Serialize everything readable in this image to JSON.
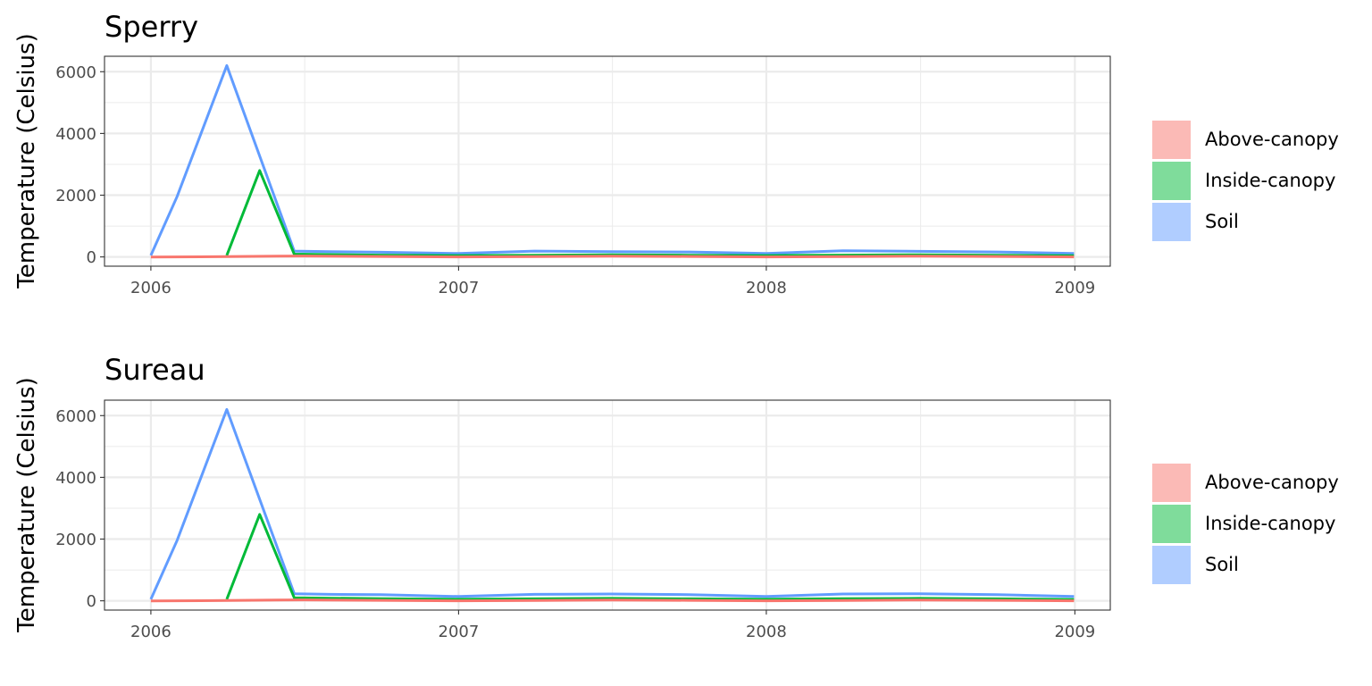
{
  "chart_data": [
    {
      "type": "line",
      "title": "Sperry",
      "xlabel": "",
      "ylabel": "Temperature (Celsius)",
      "xlim": [
        "2005-11-07",
        "2009-02-12"
      ],
      "ylim": [
        -300,
        6500
      ],
      "x_ticks": [
        "2006",
        "2007",
        "2008",
        "2009"
      ],
      "y_ticks": [
        "0",
        "2000",
        "4000",
        "6000"
      ],
      "grid": true,
      "legend": "right",
      "legend_entries": [
        "Above-canopy",
        "Inside-canopy",
        "Soil"
      ],
      "series": [
        {
          "name": "Above-canopy",
          "color": "#F8766D",
          "x": [
            "2006-01-01",
            "2006-03-01",
            "2006-06-01",
            "2006-07-01",
            "2006-10-01",
            "2007-01-01",
            "2007-04-01",
            "2007-07-01",
            "2007-10-01",
            "2008-01-01",
            "2008-04-01",
            "2008-07-01",
            "2008-10-01",
            "2008-12-31"
          ],
          "y": [
            -5,
            5,
            25,
            30,
            15,
            0,
            12,
            28,
            14,
            0,
            12,
            26,
            14,
            0
          ]
        },
        {
          "name": "Inside-canopy",
          "color": "#00BA38",
          "x": [
            "2006-04-01",
            "2006-05-10",
            "2006-06-20",
            "2006-08-01",
            "2006-10-01",
            "2007-01-01",
            "2007-04-01",
            "2007-07-01",
            "2007-10-01",
            "2008-01-01",
            "2008-04-01",
            "2008-07-01",
            "2008-10-01",
            "2008-12-31"
          ],
          "y": [
            50,
            2800,
            90,
            75,
            60,
            45,
            55,
            70,
            55,
            45,
            60,
            70,
            55,
            40
          ]
        },
        {
          "name": "Soil",
          "color": "#619CFF",
          "x": [
            "2006-01-01",
            "2006-02-01",
            "2006-04-01",
            "2006-06-20",
            "2006-08-01",
            "2006-10-01",
            "2007-01-01",
            "2007-04-01",
            "2007-07-01",
            "2007-10-01",
            "2008-01-01",
            "2008-04-01",
            "2008-07-01",
            "2008-10-01",
            "2008-12-31"
          ],
          "y": [
            50,
            1950,
            6200,
            190,
            170,
            150,
            110,
            190,
            170,
            160,
            110,
            200,
            180,
            160,
            110
          ]
        }
      ]
    },
    {
      "type": "line",
      "title": "Sureau",
      "xlabel": "",
      "ylabel": "Temperature (Celsius)",
      "xlim": [
        "2005-11-07",
        "2009-02-12"
      ],
      "ylim": [
        -300,
        6500
      ],
      "x_ticks": [
        "2006",
        "2007",
        "2008",
        "2009"
      ],
      "y_ticks": [
        "0",
        "2000",
        "4000",
        "6000"
      ],
      "grid": true,
      "legend": "right",
      "legend_entries": [
        "Above-canopy",
        "Inside-canopy",
        "Soil"
      ],
      "series": [
        {
          "name": "Above-canopy",
          "color": "#F8766D",
          "x": [
            "2006-01-01",
            "2006-03-01",
            "2006-06-01",
            "2006-07-01",
            "2006-10-01",
            "2007-01-01",
            "2007-04-01",
            "2007-07-01",
            "2007-10-01",
            "2008-01-01",
            "2008-04-01",
            "2008-07-01",
            "2008-10-01",
            "2008-12-31"
          ],
          "y": [
            -5,
            5,
            25,
            30,
            15,
            0,
            12,
            28,
            14,
            0,
            12,
            26,
            14,
            0
          ]
        },
        {
          "name": "Inside-canopy",
          "color": "#00BA38",
          "x": [
            "2006-04-01",
            "2006-05-10",
            "2006-06-20",
            "2006-08-01",
            "2006-10-01",
            "2007-01-01",
            "2007-04-01",
            "2007-07-01",
            "2007-10-01",
            "2008-01-01",
            "2008-04-01",
            "2008-07-01",
            "2008-10-01",
            "2008-12-31"
          ],
          "y": [
            50,
            2800,
            100,
            85,
            70,
            50,
            65,
            80,
            65,
            50,
            70,
            80,
            65,
            45
          ]
        },
        {
          "name": "Soil",
          "color": "#619CFF",
          "x": [
            "2006-01-01",
            "2006-02-01",
            "2006-04-01",
            "2006-06-20",
            "2006-08-01",
            "2006-10-01",
            "2007-01-01",
            "2007-04-01",
            "2007-07-01",
            "2007-10-01",
            "2008-01-01",
            "2008-04-01",
            "2008-07-01",
            "2008-10-01",
            "2008-12-31"
          ],
          "y": [
            50,
            1950,
            6200,
            230,
            210,
            200,
            140,
            210,
            220,
            200,
            140,
            220,
            230,
            200,
            140
          ]
        }
      ]
    }
  ]
}
